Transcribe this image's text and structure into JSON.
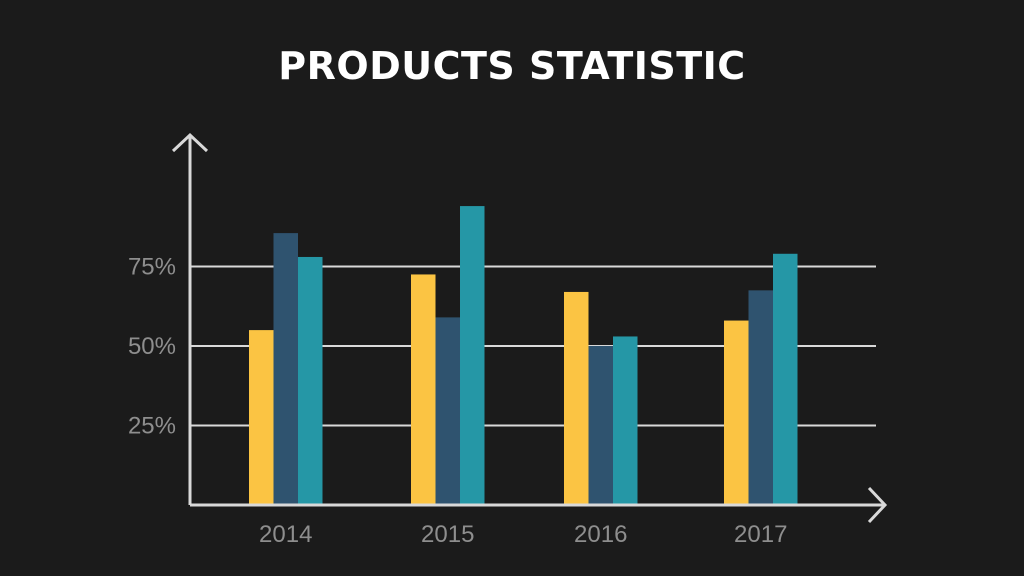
{
  "chart_data": {
    "type": "bar",
    "title": "PRODUCTS STATISTIC",
    "xlabel": "",
    "ylabel": "",
    "categories": [
      "2014",
      "2015",
      "2016",
      "2017"
    ],
    "series": [
      {
        "values": [
          55,
          72.5,
          67,
          58
        ]
      },
      {
        "values": [
          85.5,
          59,
          50,
          67.5
        ]
      },
      {
        "values": [
          78,
          94,
          53,
          79
        ]
      }
    ],
    "y_ticks": [
      25,
      50,
      75
    ],
    "y_tick_labels": [
      "25%",
      "50%",
      "75%"
    ],
    "ylim": [
      0,
      117
    ],
    "grid": true,
    "legend": "none"
  },
  "colors": {
    "background": "#1b1b1b",
    "axis": "#d9d9d9",
    "grid": "#d9d9d9",
    "series": [
      "#fbc443",
      "#2f536f",
      "#2597a6"
    ]
  }
}
